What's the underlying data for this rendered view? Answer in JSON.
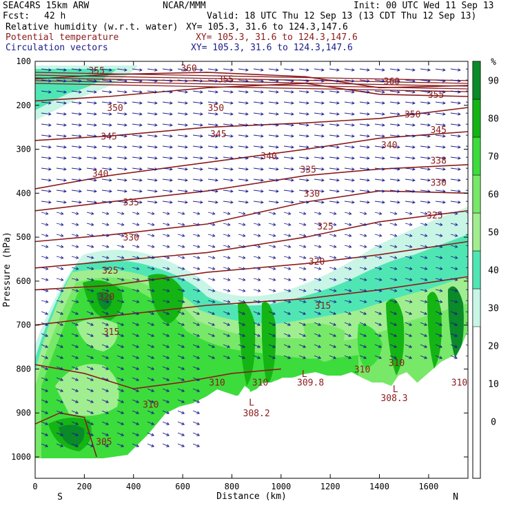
{
  "header": {
    "model": "SEAC4RS 15km ARW",
    "source": "NCAR/MMM",
    "init": "Init: 00 UTC Wed 11 Sep 13",
    "fcst_label": "Fcst:",
    "fcst_value": "42 h",
    "valid": "Valid: 18 UTC Thu 12 Sep 13 (13 CDT Thu 12 Sep 13)",
    "fields": [
      {
        "name": "Relative humidity (w.r.t. water)",
        "xy": "XY= 105.3, 31.6 to 124.3,147.6",
        "color": "#000000"
      },
      {
        "name": "Potential temperature",
        "xy": "XY= 105.3, 31.6 to 124.3,147.6",
        "color": "#8b1a1a"
      },
      {
        "name": "Circulation vectors",
        "xy": "XY= 105.3, 31.6 to 124.3,147.6",
        "color": "#1a1a8c"
      }
    ]
  },
  "chart_data": {
    "type": "contour-cross-section",
    "xlabel": "Distance (km)",
    "ylabel": "Pressure (hPa)",
    "xlim": [
      0,
      1760
    ],
    "ylim": [
      1050,
      100
    ],
    "x_ticks": [
      0,
      200,
      400,
      600,
      800,
      1000,
      1200,
      1400,
      1600
    ],
    "y_ticks": [
      100,
      200,
      300,
      400,
      500,
      600,
      700,
      800,
      900,
      1000
    ],
    "endpoints": {
      "left": "S",
      "right": "N"
    },
    "colorbar": {
      "unit": "%",
      "ticks": [
        0,
        10,
        20,
        30,
        40,
        50,
        60,
        70,
        80,
        90
      ],
      "levels": [
        {
          "from": 30,
          "to": 40,
          "color": "#c8f5e6"
        },
        {
          "from": 40,
          "to": 50,
          "color": "#50e6b4"
        },
        {
          "from": 50,
          "to": 60,
          "color": "#a0ee90"
        },
        {
          "from": 60,
          "to": 70,
          "color": "#78e868"
        },
        {
          "from": 70,
          "to": 80,
          "color": "#3cdc3c"
        },
        {
          "from": 80,
          "to": 90,
          "color": "#14b414"
        },
        {
          "from": 90,
          "to": 100,
          "color": "#0a8a28"
        }
      ]
    },
    "isentropes": [
      {
        "theta": 355,
        "x": [
          0,
          300,
          700,
          1100,
          1400,
          1760
        ],
        "p": [
          140,
          130,
          125,
          135,
          160,
          155
        ]
      },
      {
        "theta": 350,
        "x": [
          0,
          300,
          700,
          1100,
          1400,
          1760
        ],
        "p": [
          190,
          180,
          160,
          150,
          175,
          180
        ]
      },
      {
        "theta": 345,
        "x": [
          0,
          300,
          700,
          1100,
          1400,
          1760
        ],
        "p": [
          280,
          270,
          250,
          240,
          230,
          205
        ]
      },
      {
        "theta": 340,
        "x": [
          0,
          300,
          700,
          1100,
          1400,
          1760
        ],
        "p": [
          390,
          360,
          330,
          300,
          275,
          260
        ]
      },
      {
        "theta": 335,
        "x": [
          0,
          300,
          700,
          1100,
          1400,
          1760
        ],
        "p": [
          440,
          420,
          395,
          360,
          345,
          335
        ]
      },
      {
        "theta": 330,
        "x": [
          0,
          300,
          700,
          1100,
          1400,
          1760
        ],
        "p": [
          510,
          495,
          470,
          420,
          395,
          400
        ]
      },
      {
        "theta": 325,
        "x": [
          0,
          300,
          700,
          1100,
          1400,
          1760
        ],
        "p": [
          570,
          555,
          535,
          500,
          465,
          440
        ]
      },
      {
        "theta": 320,
        "x": [
          0,
          300,
          700,
          1100,
          1400,
          1760
        ],
        "p": [
          620,
          610,
          580,
          560,
          540,
          510
        ]
      },
      {
        "theta": 315,
        "x": [
          0,
          300,
          700,
          1100,
          1400,
          1760
        ],
        "p": [
          700,
          680,
          655,
          640,
          620,
          590
        ]
      },
      {
        "theta": 310,
        "x": [
          0,
          200,
          400,
          600,
          800,
          1000
        ],
        "p": [
          790,
          810,
          845,
          830,
          810,
          800
        ]
      },
      {
        "theta": 305,
        "x": [
          0,
          100,
          200,
          250
        ],
        "p": [
          925,
          900,
          910,
          1000
        ]
      }
    ],
    "contour_labels": [
      {
        "text": "355",
        "x": 250,
        "p": 120
      },
      {
        "text": "360",
        "x": 625,
        "p": 115
      },
      {
        "text": "355",
        "x": 775,
        "p": 140
      },
      {
        "text": "360",
        "x": 1450,
        "p": 145
      },
      {
        "text": "355",
        "x": 1630,
        "p": 175
      },
      {
        "text": "350",
        "x": 325,
        "p": 205
      },
      {
        "text": "350",
        "x": 735,
        "p": 205
      },
      {
        "text": "350",
        "x": 1535,
        "p": 220
      },
      {
        "text": "345",
        "x": 1640,
        "p": 255
      },
      {
        "text": "345",
        "x": 300,
        "p": 270
      },
      {
        "text": "345",
        "x": 745,
        "p": 265
      },
      {
        "text": "340",
        "x": 1440,
        "p": 290
      },
      {
        "text": "340",
        "x": 950,
        "p": 315
      },
      {
        "text": "338",
        "x": 1640,
        "p": 325
      },
      {
        "text": "340",
        "x": 265,
        "p": 355
      },
      {
        "text": "335",
        "x": 1110,
        "p": 345
      },
      {
        "text": "330",
        "x": 1640,
        "p": 375
      },
      {
        "text": "330",
        "x": 1125,
        "p": 400
      },
      {
        "text": "335",
        "x": 390,
        "p": 420
      },
      {
        "text": "325",
        "x": 1625,
        "p": 450
      },
      {
        "text": "325",
        "x": 1180,
        "p": 475
      },
      {
        "text": "330",
        "x": 390,
        "p": 500
      },
      {
        "text": "320",
        "x": 1145,
        "p": 555
      },
      {
        "text": "325",
        "x": 305,
        "p": 575
      },
      {
        "text": "315",
        "x": 1170,
        "p": 655
      },
      {
        "text": "320",
        "x": 290,
        "p": 635
      },
      {
        "text": "315",
        "x": 310,
        "p": 715
      },
      {
        "text": "310",
        "x": 740,
        "p": 830
      },
      {
        "text": "310",
        "x": 915,
        "p": 830
      },
      {
        "text": "309.8",
        "x": 1120,
        "p": 830
      },
      {
        "text": "310",
        "x": 1330,
        "p": 800
      },
      {
        "text": "310",
        "x": 1470,
        "p": 785
      },
      {
        "text": "308.3",
        "x": 1460,
        "p": 865
      },
      {
        "text": "310",
        "x": 1725,
        "p": 830
      },
      {
        "text": "308.2",
        "x": 900,
        "p": 900
      },
      {
        "text": "310",
        "x": 470,
        "p": 880
      },
      {
        "text": "305",
        "x": 280,
        "p": 965
      }
    ],
    "lows": [
      {
        "text": "L",
        "x": 880,
        "p": 875
      },
      {
        "text": "L",
        "x": 1095,
        "p": 810
      },
      {
        "text": "L",
        "x": 1465,
        "p": 845
      }
    ]
  }
}
